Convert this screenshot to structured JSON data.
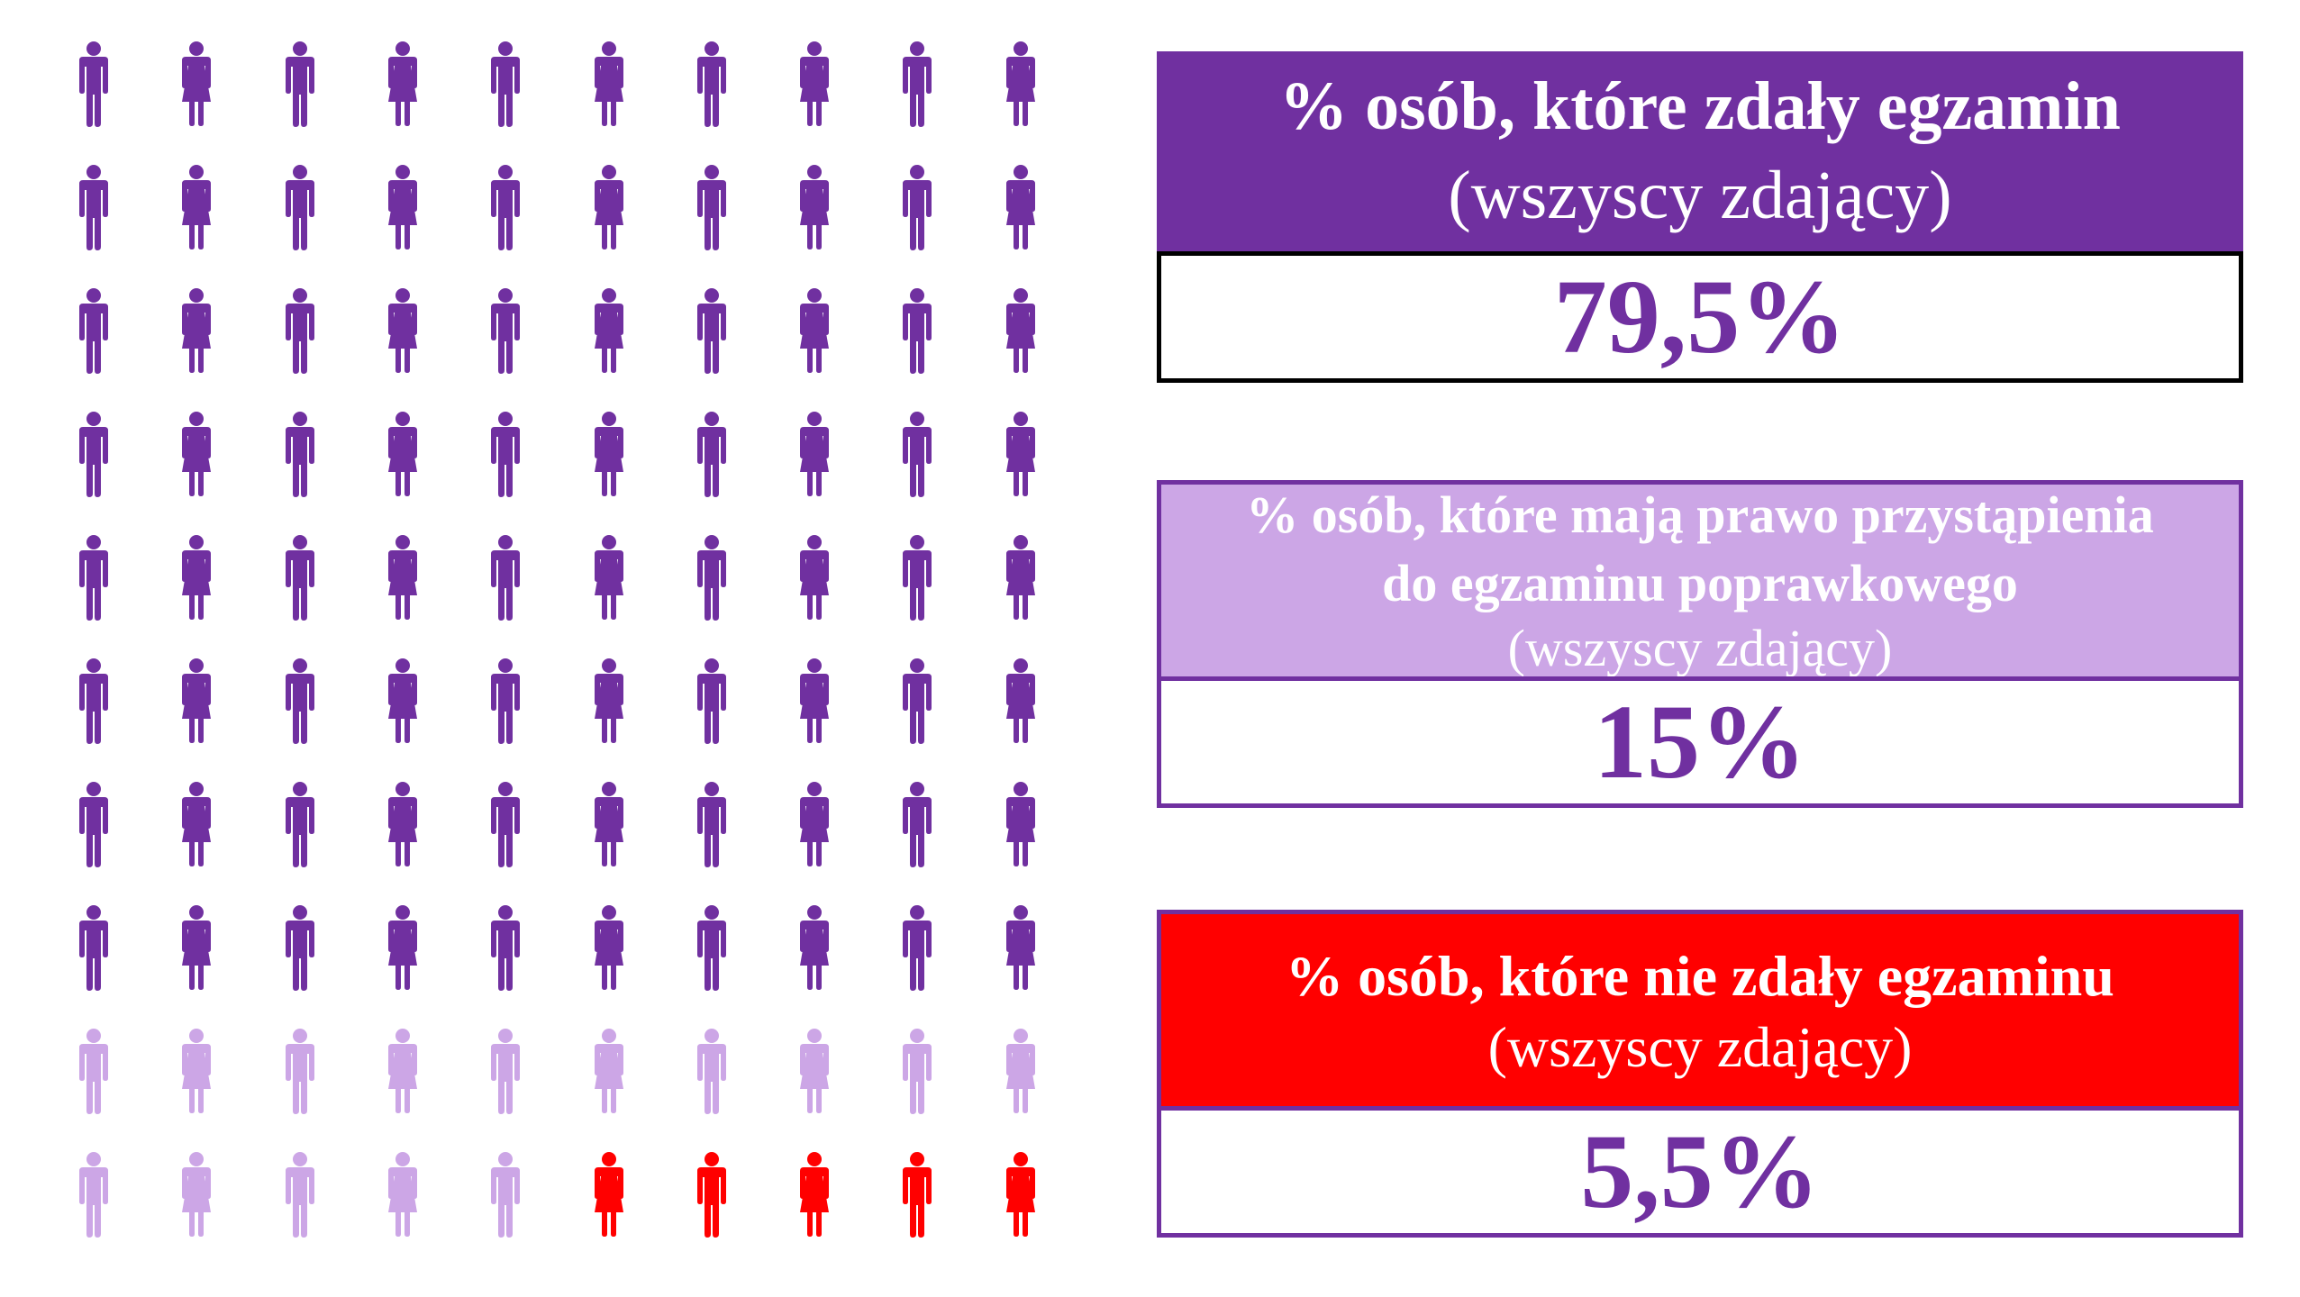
{
  "colors": {
    "passed": "#7030A0",
    "retake": "#CCA6E6",
    "failed": "#FF0000"
  },
  "pictogram": {
    "rows": 10,
    "columns": 10,
    "icon_pattern": [
      "male-icon",
      "female-icon"
    ],
    "counts": {
      "passed": 80,
      "retake": 15,
      "failed": 5
    }
  },
  "boxes": [
    {
      "title": "% osób, które zdały egzamin",
      "subtitle": "(wszyscy zdający)",
      "value": "79,5%"
    },
    {
      "title_line1": "% osób, które mają prawo przystąpienia",
      "title_line2": "do egzaminu poprawkowego",
      "subtitle": "(wszyscy zdający)",
      "value": "15%"
    },
    {
      "title": "% osób, które nie zdały egzaminu",
      "subtitle": "(wszyscy zdający)",
      "value": "5,5%"
    }
  ]
}
